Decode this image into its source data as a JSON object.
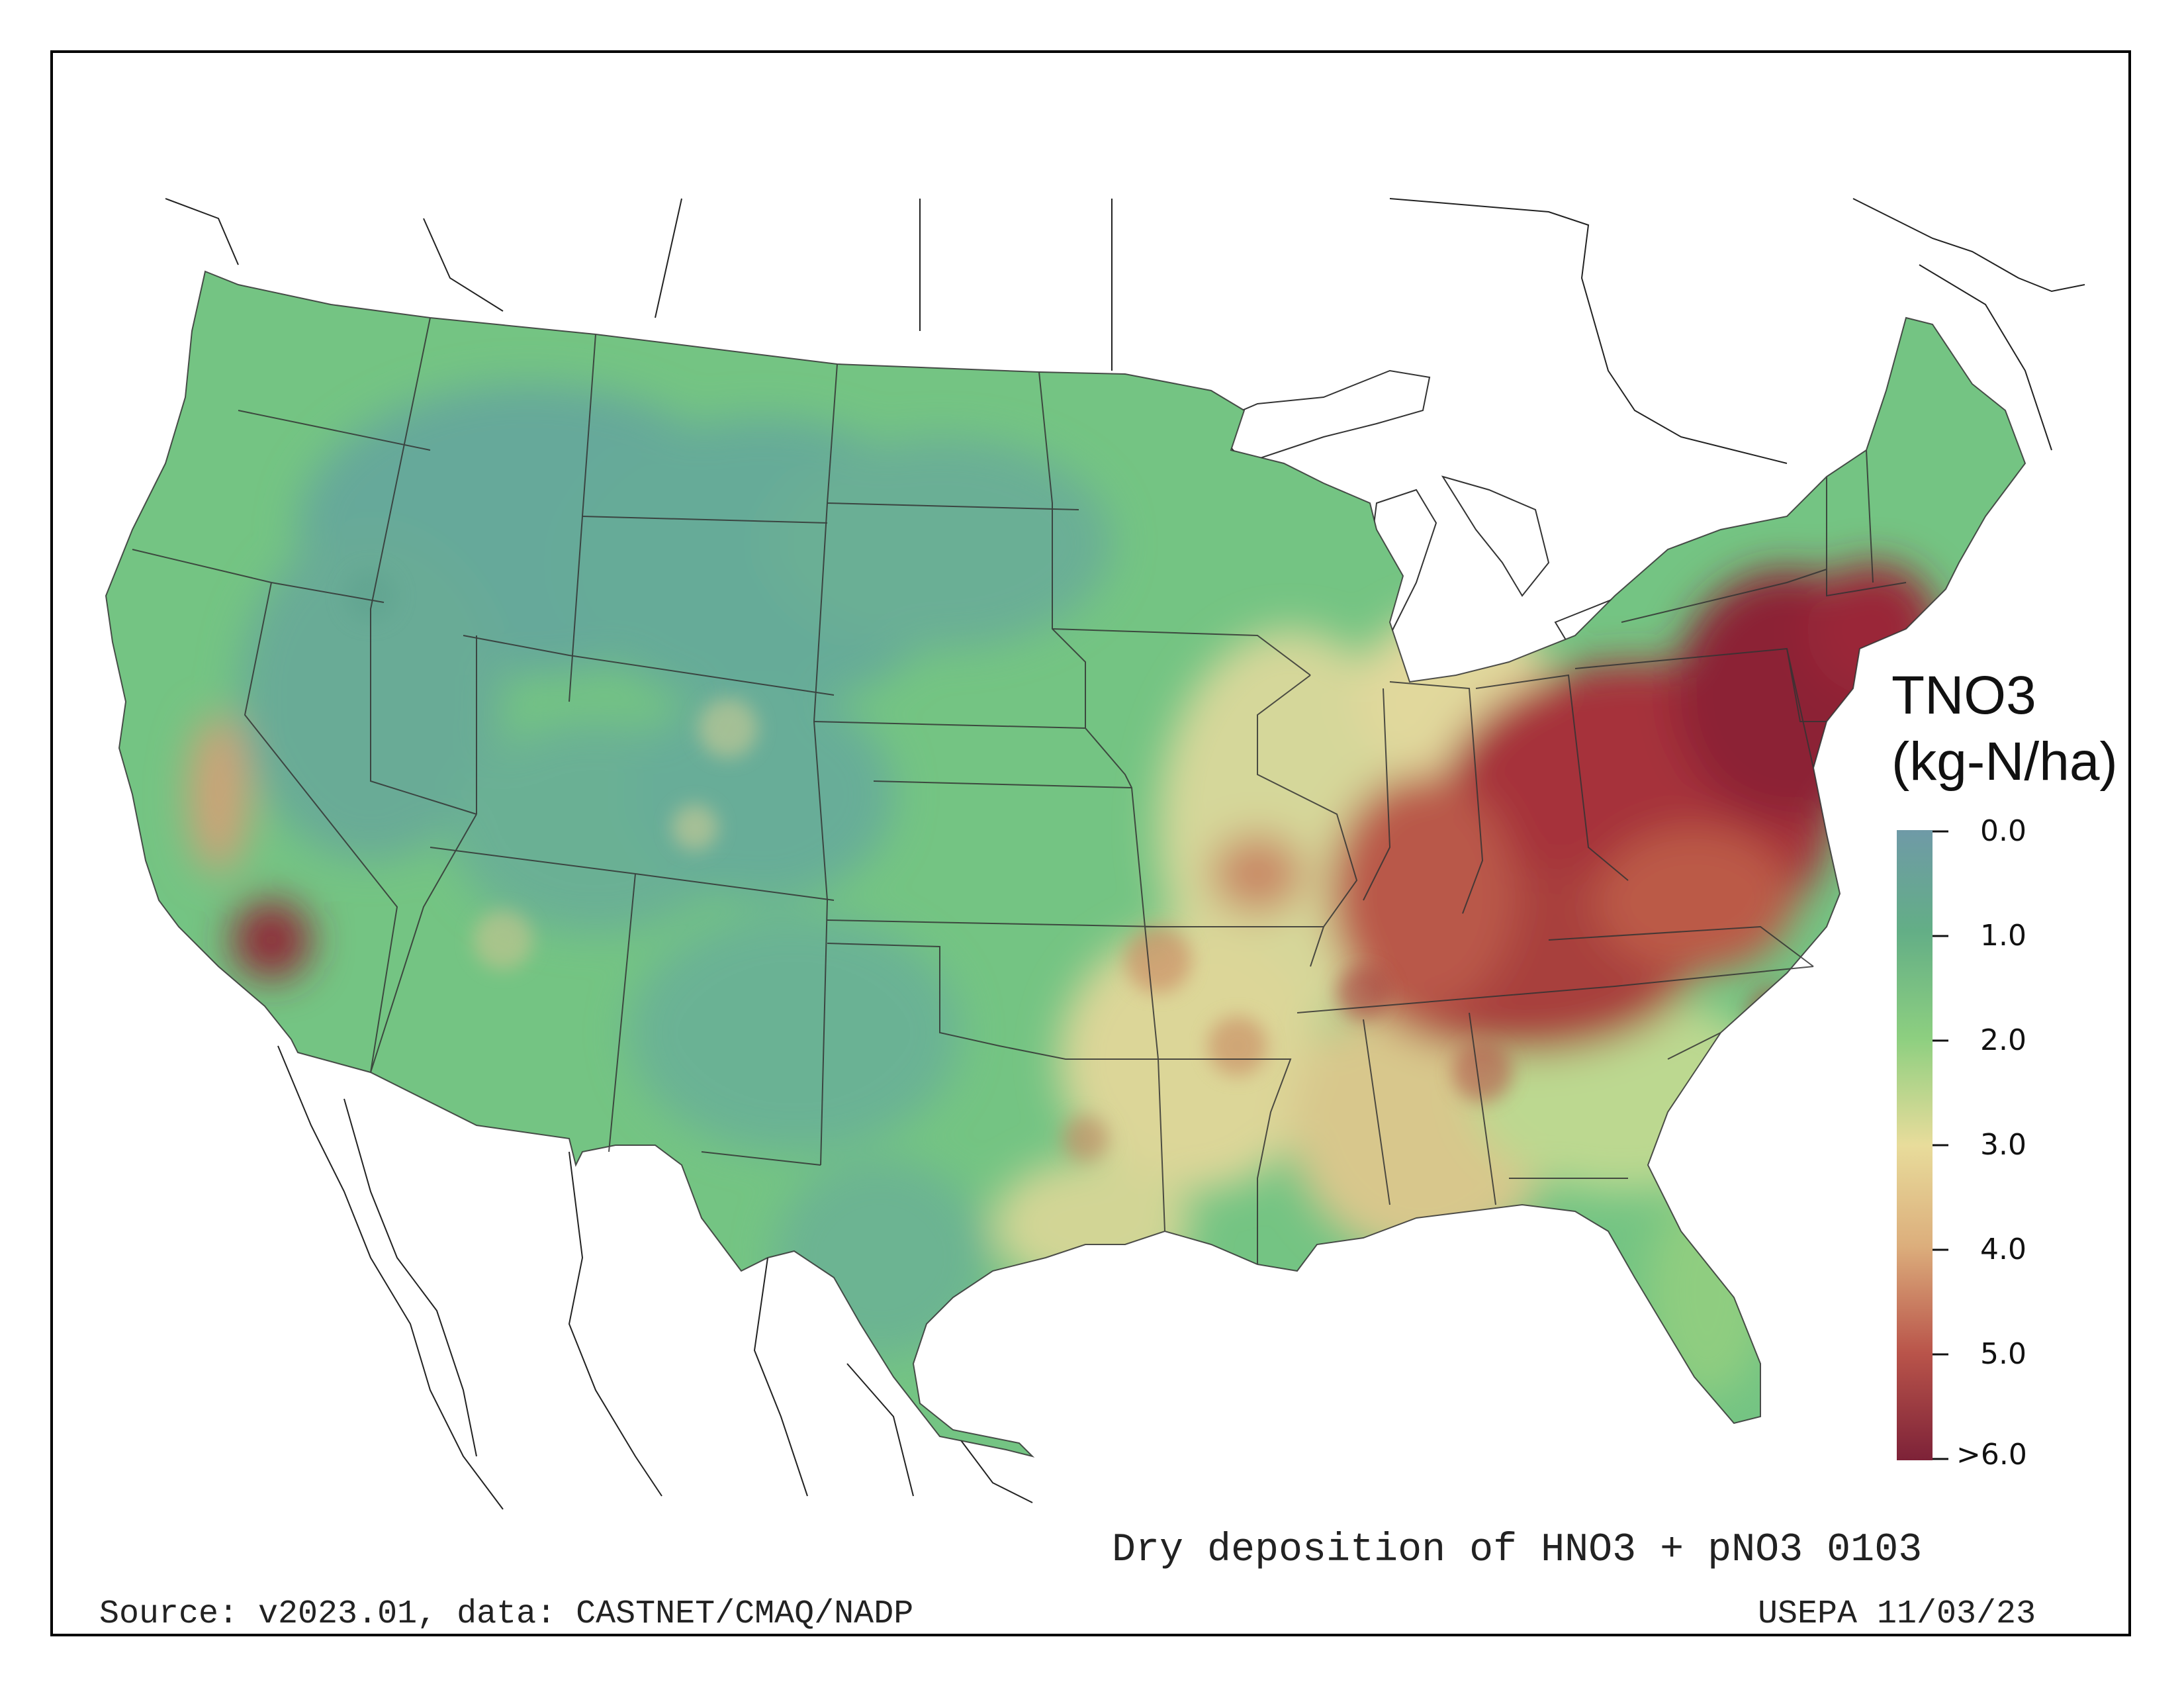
{
  "map": {
    "title": "Dry deposition of HNO3 + pNO3 0103",
    "source": "Source: v2023.01, data: CASTNET/CMAQ/NADP",
    "agency": "USEPA 11/03/23",
    "region": "Contiguous United States",
    "variable": "Dry deposition of HNO3 + pNO3"
  },
  "legend": {
    "title_line1": "TNO3",
    "title_line2": "(kg-N/ha)",
    "ticks": [
      "0.0",
      "1.0",
      "2.0",
      "3.0",
      "4.0",
      "5.0",
      ">6.0"
    ],
    "colors": [
      "#6f9aa7",
      "#63ae86",
      "#79c87a",
      "#b8da8e",
      "#e8dc9b",
      "#dcb17d",
      "#c6744f",
      "#a3383a",
      "#7d1c36"
    ],
    "range": [
      0,
      6
    ]
  },
  "deposition_patterns": {
    "highest": "Ohio Valley, Pennsylvania, Mid-Atlantic, southern New England, Los Angeles basin",
    "moderate": "Southeast, Gulf Coast, Midwest",
    "lowest": "Northern Rockies, Great Basin, Great Plains"
  }
}
